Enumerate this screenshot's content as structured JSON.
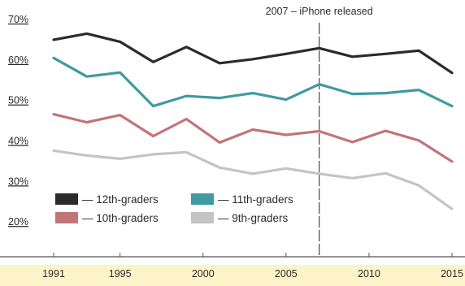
{
  "chart_data": {
    "type": "line",
    "xlim": [
      1991,
      2015
    ],
    "ylim": [
      15,
      72
    ],
    "x_ticks": [
      "1991",
      "1995",
      "2000",
      "2005",
      "2010",
      "2015"
    ],
    "y_ticks": [
      "70%",
      "60%",
      "50%",
      "40%",
      "30%",
      "20%"
    ],
    "grid": false,
    "legend_position": "bottom-left",
    "annotation": {
      "x": 2007,
      "label": "2007 – iPhone released"
    },
    "series": [
      {
        "name": "— 12th-graders",
        "color": "#2b2b2b",
        "x": [
          1991,
          1993,
          1995,
          1997,
          1999,
          2001,
          2003,
          2005,
          2007,
          2009,
          2011,
          2013,
          2015
        ],
        "y": [
          65.0,
          66.5,
          64.5,
          59.5,
          63.2,
          59.2,
          60.2,
          61.5,
          62.9,
          60.8,
          61.5,
          62.3,
          56.8
        ]
      },
      {
        "name": "— 11th-graders",
        "color": "#3f9aa2",
        "x": [
          1991,
          1993,
          1995,
          1997,
          1999,
          2001,
          2003,
          2005,
          2007,
          2009,
          2011,
          2013,
          2015
        ],
        "y": [
          60.5,
          55.9,
          56.9,
          48.6,
          51.1,
          50.6,
          51.8,
          50.2,
          54.0,
          51.6,
          51.8,
          52.6,
          48.6
        ]
      },
      {
        "name": "— 10th-graders",
        "color": "#c27478",
        "x": [
          1991,
          1993,
          1995,
          1997,
          1999,
          2001,
          2003,
          2005,
          2007,
          2009,
          2011,
          2013,
          2015
        ],
        "y": [
          46.6,
          44.6,
          46.4,
          41.2,
          45.4,
          39.6,
          42.8,
          41.5,
          42.4,
          39.7,
          42.5,
          40.1,
          34.9
        ]
      },
      {
        "name": "— 9th-graders",
        "color": "#c4c4c4",
        "x": [
          1991,
          1993,
          1995,
          1997,
          1999,
          2001,
          2003,
          2005,
          2007,
          2009,
          2011,
          2013,
          2015
        ],
        "y": [
          37.6,
          36.4,
          35.6,
          36.7,
          37.2,
          33.4,
          31.9,
          33.2,
          31.9,
          30.8,
          32.0,
          29.0,
          23.2
        ]
      }
    ]
  }
}
